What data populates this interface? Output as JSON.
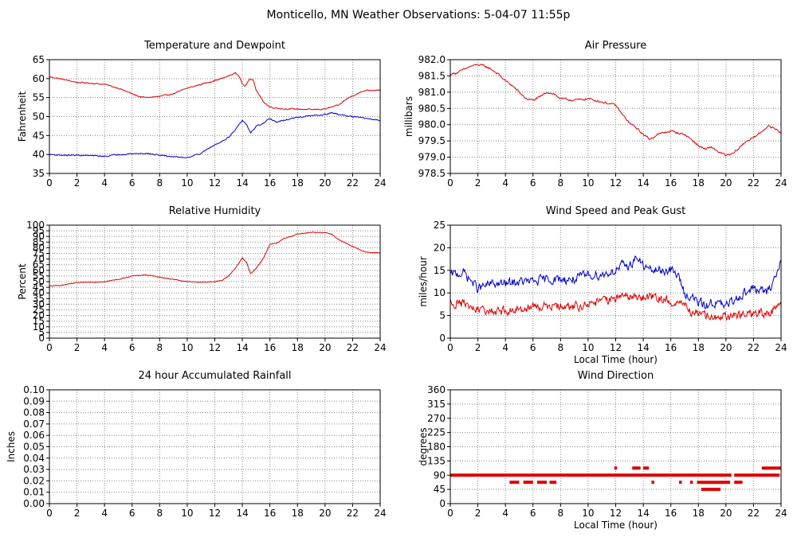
{
  "page_title": "Monticello, MN Weather Observations: 5-04-07 11:55p",
  "colors": {
    "red": "#dd0000",
    "blue": "#0000cc",
    "grid": "#888888"
  },
  "chart_data": [
    {
      "id": "temp",
      "type": "line",
      "title": "Temperature and Dewpoint",
      "xlabel": "",
      "ylabel": "Fahrenheit",
      "xlim": [
        0,
        24
      ],
      "ylim": [
        35,
        65
      ],
      "xticks": [
        0,
        2,
        4,
        6,
        8,
        10,
        12,
        14,
        16,
        18,
        20,
        22,
        24
      ],
      "yticks": [
        35,
        40,
        45,
        50,
        55,
        60,
        65
      ],
      "ytick_decimals": 0,
      "noise": 0.25,
      "series": [
        {
          "color": "#dd0000",
          "x": [
            0,
            1,
            2,
            3,
            4,
            5,
            6,
            6.5,
            7,
            8,
            9,
            10,
            11,
            12,
            12.5,
            13,
            13.5,
            13.8,
            14,
            14.2,
            14.5,
            14.8,
            15,
            15.5,
            16,
            17,
            18,
            19,
            20,
            21,
            21.5,
            22,
            23,
            24
          ],
          "y": [
            60.5,
            59.8,
            59,
            58.8,
            58.5,
            57.5,
            56,
            55.3,
            55,
            55.3,
            56,
            57.5,
            58.5,
            59.5,
            60,
            60.7,
            61.5,
            60.5,
            58.5,
            58,
            60,
            59.5,
            57,
            54,
            52.5,
            52,
            52,
            51.8,
            52,
            53,
            54.5,
            55.5,
            57,
            57
          ]
        },
        {
          "color": "#0000cc",
          "x": [
            0,
            1,
            2,
            3,
            4,
            5,
            6,
            7,
            8,
            9,
            10,
            11,
            11.5,
            12,
            12.5,
            13,
            13.5,
            14,
            14.3,
            14.6,
            15,
            15.5,
            16,
            16.5,
            17,
            18,
            19,
            20,
            20.5,
            21,
            22,
            23,
            24
          ],
          "y": [
            40,
            39.8,
            39.8,
            39.7,
            39.5,
            40,
            40.2,
            40.3,
            39.8,
            39.4,
            39.2,
            40.3,
            41.5,
            42.5,
            43.5,
            44.5,
            46.5,
            49,
            48,
            45.5,
            47.5,
            48,
            49.5,
            48.5,
            49,
            49.8,
            50.2,
            50.5,
            51,
            50.5,
            50,
            49.5,
            49
          ]
        }
      ]
    },
    {
      "id": "pressure",
      "type": "line",
      "title": "Air Pressure",
      "xlabel": "",
      "ylabel": "millibars",
      "xlim": [
        0,
        24
      ],
      "ylim": [
        978.5,
        982.0
      ],
      "xticks": [
        0,
        2,
        4,
        6,
        8,
        10,
        12,
        14,
        16,
        18,
        20,
        22,
        24
      ],
      "yticks": [
        978.5,
        979.0,
        979.5,
        980.0,
        980.5,
        981.0,
        981.5,
        982.0
      ],
      "ytick_decimals": 1,
      "noise": 0.05,
      "series": [
        {
          "color": "#dd0000",
          "x": [
            0,
            0.5,
            1,
            1.5,
            2,
            2.5,
            3,
            3.5,
            4,
            4.5,
            5,
            5.5,
            6,
            6.5,
            7,
            7.5,
            8,
            9,
            10,
            11,
            11.5,
            12,
            12.5,
            13,
            13.5,
            14,
            14.5,
            15,
            16,
            16.5,
            17,
            17.5,
            18,
            18.5,
            19,
            19.5,
            20,
            20.5,
            21,
            21.5,
            22,
            22.5,
            23,
            23.5,
            24
          ],
          "y": [
            981.55,
            981.6,
            981.7,
            981.8,
            981.85,
            981.8,
            981.7,
            981.55,
            981.35,
            981.2,
            981.0,
            980.8,
            980.75,
            980.85,
            981.0,
            980.95,
            980.8,
            980.75,
            980.8,
            980.7,
            980.65,
            980.6,
            980.3,
            980.05,
            979.9,
            979.7,
            979.55,
            979.7,
            979.8,
            979.75,
            979.7,
            979.55,
            979.35,
            979.25,
            979.3,
            979.15,
            979.05,
            979.1,
            979.3,
            979.5,
            979.6,
            979.75,
            979.95,
            979.9,
            979.75
          ]
        }
      ]
    },
    {
      "id": "humidity",
      "type": "line",
      "title": "Relative Humidity",
      "xlabel": "",
      "ylabel": "Percent",
      "xlim": [
        0,
        24
      ],
      "ylim": [
        0,
        100
      ],
      "xticks": [
        0,
        2,
        4,
        6,
        8,
        10,
        12,
        14,
        16,
        18,
        20,
        22,
        24
      ],
      "yticks": [
        0,
        5,
        10,
        15,
        20,
        25,
        30,
        35,
        40,
        45,
        50,
        55,
        60,
        65,
        70,
        75,
        80,
        85,
        90,
        95,
        100
      ],
      "ytick_decimals": 0,
      "noise": 0.5,
      "series": [
        {
          "color": "#dd0000",
          "x": [
            0,
            1,
            2,
            3,
            4,
            5,
            6,
            7,
            8,
            9,
            10,
            11,
            12,
            12.5,
            13,
            13.5,
            14,
            14.3,
            14.6,
            15,
            15.5,
            16,
            16.5,
            17,
            18,
            19,
            20,
            20.5,
            21,
            22,
            23,
            24
          ],
          "y": [
            46,
            47,
            49,
            49.5,
            50,
            52,
            55,
            56,
            54,
            52,
            50,
            49.5,
            50,
            51,
            55,
            62,
            71,
            67,
            57,
            62,
            70,
            83,
            84,
            88,
            92,
            93.5,
            93.5,
            92,
            87,
            81,
            76,
            75.5
          ]
        }
      ]
    },
    {
      "id": "wind",
      "type": "line",
      "title": "Wind Speed and Peak Gust",
      "xlabel": "Local Time (hour)",
      "ylabel": "miles/hour",
      "xlim": [
        0,
        24
      ],
      "ylim": [
        0,
        25
      ],
      "xticks": [
        0,
        2,
        4,
        6,
        8,
        10,
        12,
        14,
        16,
        18,
        20,
        22,
        24
      ],
      "yticks": [
        0,
        5,
        10,
        15,
        20,
        25
      ],
      "ytick_decimals": 0,
      "noise": 1.6,
      "series": [
        {
          "color": "#0000cc",
          "x": [
            0,
            1,
            2,
            3,
            4,
            5,
            6,
            7,
            8,
            9,
            10,
            11,
            12,
            12.5,
            13,
            13.5,
            14,
            14.5,
            15,
            16,
            16.5,
            17,
            17.5,
            18,
            18.5,
            19,
            20,
            21,
            22,
            23,
            23.5,
            24
          ],
          "y": [
            14,
            14.5,
            11,
            12,
            12,
            12.5,
            12.5,
            13,
            13,
            13,
            14,
            14,
            15,
            16,
            16,
            18,
            16,
            15,
            15,
            15,
            14,
            10,
            9,
            8,
            7,
            8,
            7,
            9.5,
            11,
            10,
            13,
            17
          ]
        },
        {
          "color": "#dd0000",
          "x": [
            0,
            1,
            2,
            3,
            4,
            5,
            6,
            7,
            8,
            9,
            10,
            11,
            12,
            12.5,
            13,
            13.5,
            14,
            15,
            16,
            16.5,
            17,
            17.5,
            18,
            19,
            20,
            21,
            22,
            23,
            24
          ],
          "y": [
            8,
            7.5,
            6,
            6,
            6,
            6.5,
            7,
            7,
            7,
            7,
            7.5,
            8,
            9,
            9,
            9.5,
            8.5,
            9,
            9,
            8,
            8,
            7,
            6,
            5,
            4.5,
            5,
            5,
            5.5,
            5.5,
            7
          ]
        }
      ]
    },
    {
      "id": "rain",
      "type": "line",
      "title": "24 hour Accumulated Rainfall",
      "xlabel": "",
      "ylabel": "Inches",
      "xlim": [
        0,
        24
      ],
      "ylim": [
        0,
        0.1
      ],
      "xticks": [
        0,
        2,
        4,
        6,
        8,
        10,
        12,
        14,
        16,
        18,
        20,
        22,
        24
      ],
      "yticks": [
        0,
        0.01,
        0.02,
        0.03,
        0.04,
        0.05,
        0.06,
        0.07,
        0.08,
        0.09,
        0.1
      ],
      "ytick_decimals": 2,
      "noise": 0,
      "series": [
        {
          "color": "#dd0000",
          "x": [
            0,
            24
          ],
          "y": [
            0,
            0
          ]
        }
      ]
    },
    {
      "id": "winddir",
      "type": "scatter",
      "title": "Wind Direction",
      "xlabel": "Local Time (hour)",
      "ylabel": "degrees",
      "xlim": [
        0,
        24
      ],
      "ylim": [
        0,
        360
      ],
      "xticks": [
        0,
        2,
        4,
        6,
        8,
        10,
        12,
        14,
        16,
        18,
        20,
        22,
        24
      ],
      "yticks": [
        0,
        45,
        90,
        135,
        180,
        225,
        270,
        315,
        360
      ],
      "ytick_decimals": 0,
      "segments": [
        {
          "value": 90,
          "x0": 0,
          "x1": 20.4
        },
        {
          "value": 67.5,
          "x0": 4.3,
          "x1": 5.0
        },
        {
          "value": 67.5,
          "x0": 5.3,
          "x1": 6.0
        },
        {
          "value": 67.5,
          "x0": 6.3,
          "x1": 7.0
        },
        {
          "value": 67.5,
          "x0": 7.2,
          "x1": 7.7
        },
        {
          "value": 112.5,
          "x0": 11.9,
          "x1": 12.1
        },
        {
          "value": 112.5,
          "x0": 13.2,
          "x1": 13.8
        },
        {
          "value": 112.5,
          "x0": 14.0,
          "x1": 14.4
        },
        {
          "value": 67.5,
          "x0": 14.6,
          "x1": 14.8
        },
        {
          "value": 67.5,
          "x0": 16.6,
          "x1": 16.8
        },
        {
          "value": 67.5,
          "x0": 17.4,
          "x1": 17.6
        },
        {
          "value": 67.5,
          "x0": 17.9,
          "x1": 20.3
        },
        {
          "value": 45,
          "x0": 18.2,
          "x1": 19.6
        },
        {
          "value": 67.5,
          "x0": 20.6,
          "x1": 21.2
        },
        {
          "value": 90,
          "x0": 20.6,
          "x1": 23.9
        },
        {
          "value": 112.5,
          "x0": 22.6,
          "x1": 24
        }
      ]
    }
  ]
}
